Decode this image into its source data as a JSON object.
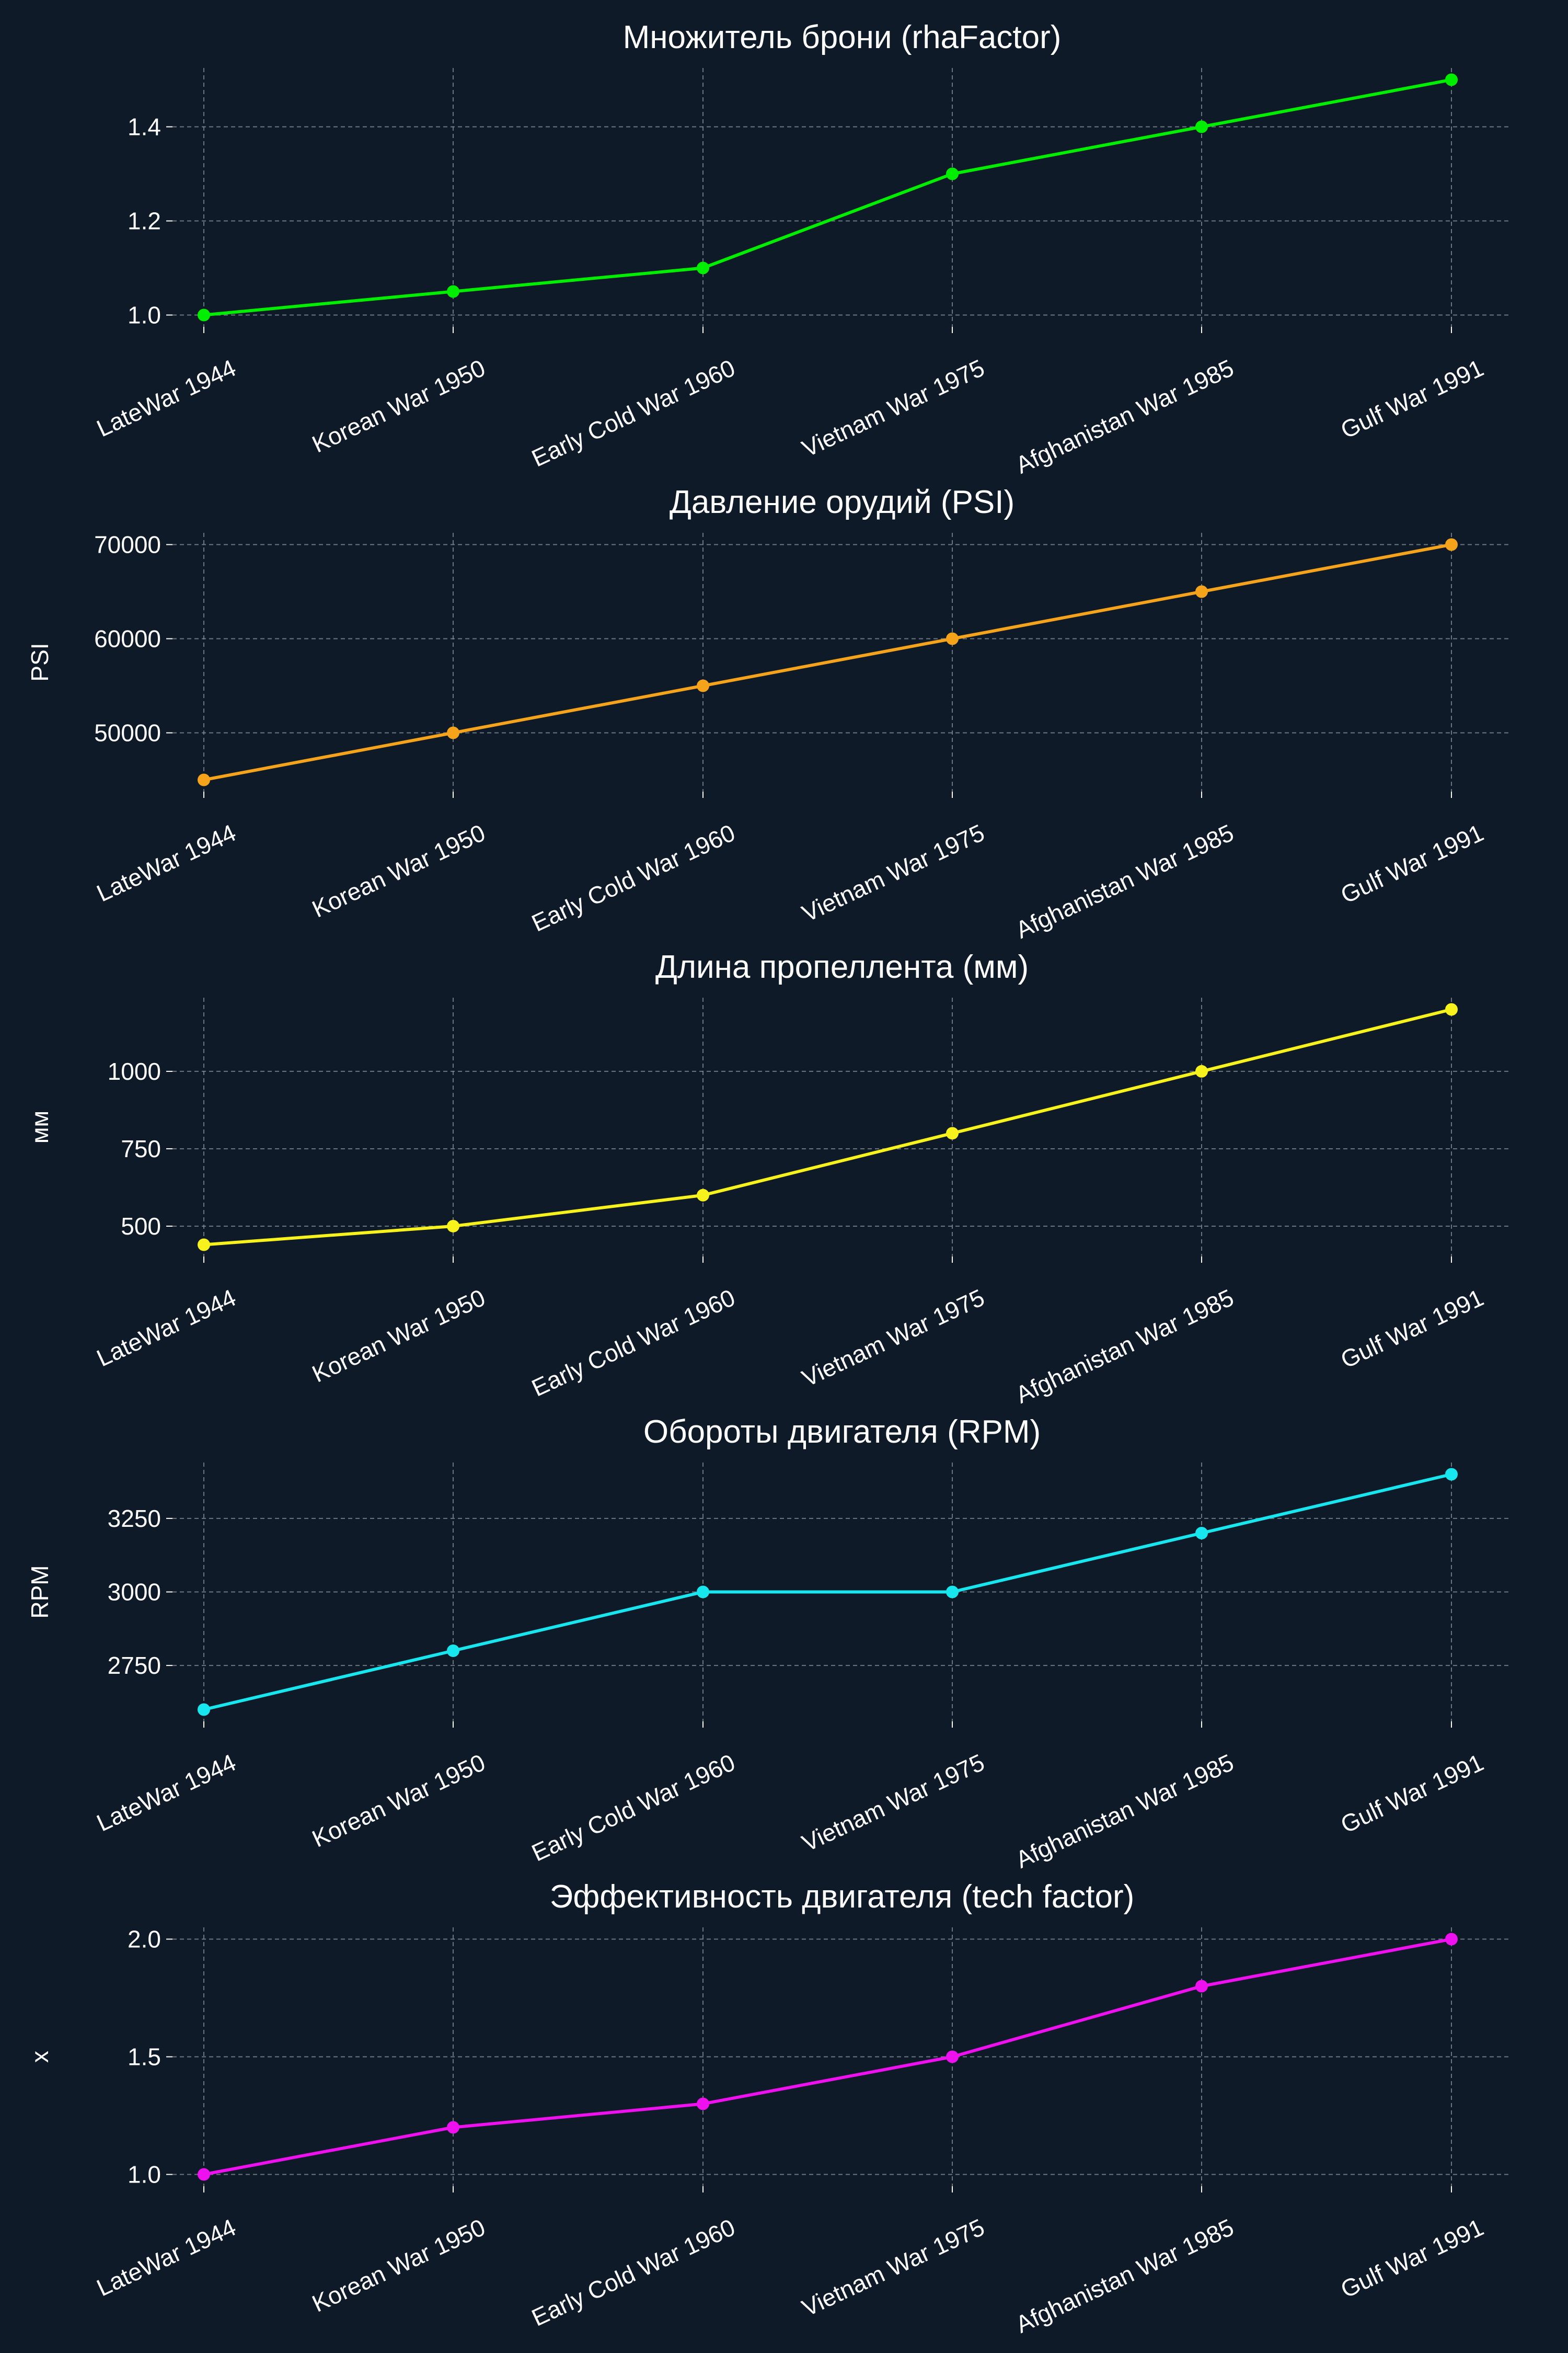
{
  "background_color": "#0e1a28",
  "chart_data": [
    {
      "type": "line",
      "title": "Множитель брони (rhaFactor)",
      "ylabel": "",
      "color": "#00ee00",
      "categories": [
        "LateWar 1944",
        "Korean War 1950",
        "Early Cold War 1960",
        "Vietnam War 1975",
        "Afghanistan War 1985",
        "Gulf War 1991"
      ],
      "values": [
        1.0,
        1.05,
        1.1,
        1.3,
        1.4,
        1.5
      ],
      "ylim": [
        0.975,
        1.525
      ],
      "yticks": [
        1.0,
        1.2,
        1.4
      ],
      "ytick_labels": [
        "1.0",
        "1.2",
        "1.4"
      ],
      "grid": true
    },
    {
      "type": "line",
      "title": "Давление орудий (PSI)",
      "ylabel": "PSI",
      "color": "#f5a31a",
      "categories": [
        "LateWar 1944",
        "Korean War 1950",
        "Early Cold War 1960",
        "Vietnam War 1975",
        "Afghanistan War 1985",
        "Gulf War 1991"
      ],
      "values": [
        45000,
        50000,
        55000,
        60000,
        65000,
        70000
      ],
      "ylim": [
        43750,
        71250
      ],
      "yticks": [
        50000,
        60000,
        70000
      ],
      "ytick_labels": [
        "50000",
        "60000",
        "70000"
      ],
      "grid": true
    },
    {
      "type": "line",
      "title": "Длина пропеллента (мм)",
      "ylabel": "мм",
      "color": "#f7f21c",
      "categories": [
        "LateWar 1944",
        "Korean War 1950",
        "Early Cold War 1960",
        "Vietnam War 1975",
        "Afghanistan War 1985",
        "Gulf War 1991"
      ],
      "values": [
        440,
        500,
        600,
        800,
        1000,
        1200
      ],
      "ylim": [
        402,
        1238
      ],
      "yticks": [
        500,
        750,
        1000
      ],
      "ytick_labels": [
        "500",
        "750",
        "1000"
      ],
      "grid": true
    },
    {
      "type": "line",
      "title": "Обороты двигателя (RPM)",
      "ylabel": "RPM",
      "color": "#18e6ee",
      "categories": [
        "LateWar 1944",
        "Korean War 1950",
        "Early Cold War 1960",
        "Vietnam War 1975",
        "Afghanistan War 1985",
        "Gulf War 1991"
      ],
      "values": [
        2600,
        2800,
        3000,
        3000,
        3200,
        3400
      ],
      "ylim": [
        2560,
        3440
      ],
      "yticks": [
        2750,
        3000,
        3250
      ],
      "ytick_labels": [
        "2750",
        "3000",
        "3250"
      ],
      "grid": true
    },
    {
      "type": "line",
      "title": "Эффективность двигателя (tech factor)",
      "ylabel": "x",
      "color": "#ee10ee",
      "categories": [
        "LateWar 1944",
        "Korean War 1950",
        "Early Cold War 1960",
        "Vietnam War 1975",
        "Afghanistan War 1985",
        "Gulf War 1991"
      ],
      "values": [
        1.0,
        1.2,
        1.3,
        1.5,
        1.8,
        2.0
      ],
      "ylim": [
        0.95,
        2.05
      ],
      "yticks": [
        1.0,
        1.5,
        2.0
      ],
      "ytick_labels": [
        "1.0",
        "1.5",
        "2.0"
      ],
      "grid": true
    }
  ]
}
